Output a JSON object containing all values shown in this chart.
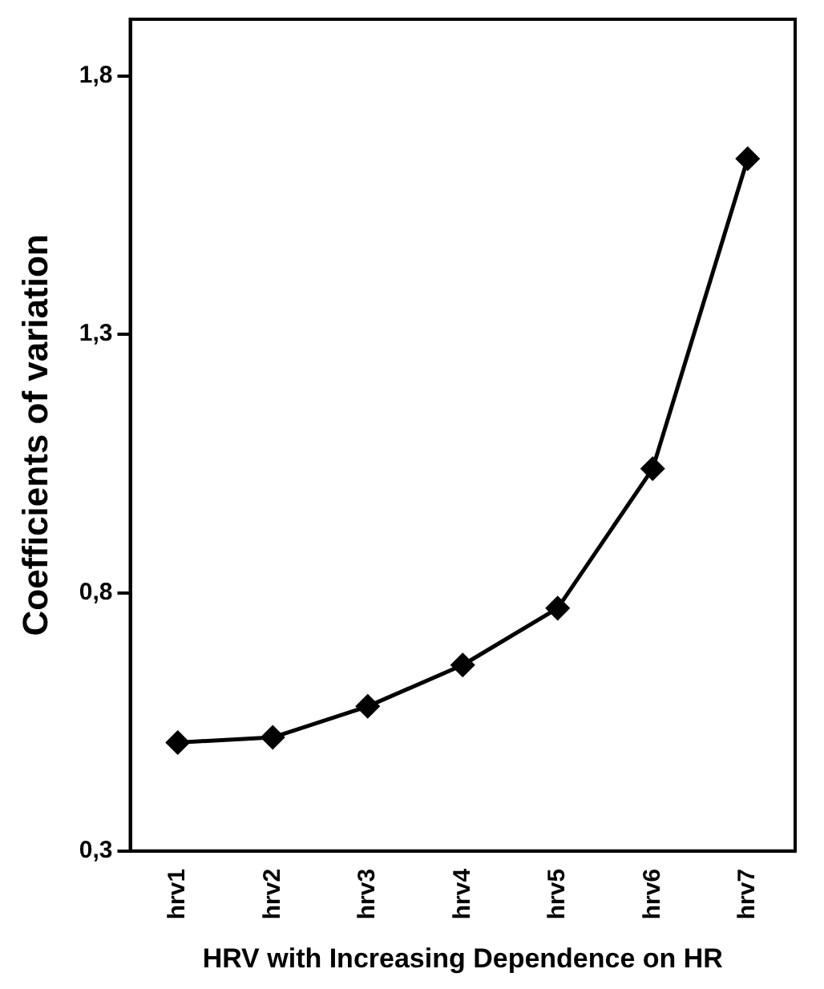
{
  "chart_data": {
    "type": "line",
    "xlabel": "HRV with Increasing Dependence on HR",
    "ylabel": "Coefficients of variation",
    "categories": [
      "hrv1",
      "hrv2",
      "hrv3",
      "hrv4",
      "hrv5",
      "hrv6",
      "hrv7"
    ],
    "series": [
      {
        "color": "#000000",
        "values": [
          0.51,
          0.52,
          0.58,
          0.66,
          0.77,
          1.04,
          1.64
        ]
      }
    ],
    "ylim": [
      0.3,
      1.91
    ],
    "yticks": [
      {
        "value": 0.3,
        "label": "0,3"
      },
      {
        "value": 0.8,
        "label": "0,8"
      },
      {
        "value": 1.3,
        "label": "1,3"
      },
      {
        "value": 1.8,
        "label": "1,8"
      }
    ],
    "grid": false,
    "legend": false,
    "marker": "diamond",
    "line_style": "solid"
  }
}
